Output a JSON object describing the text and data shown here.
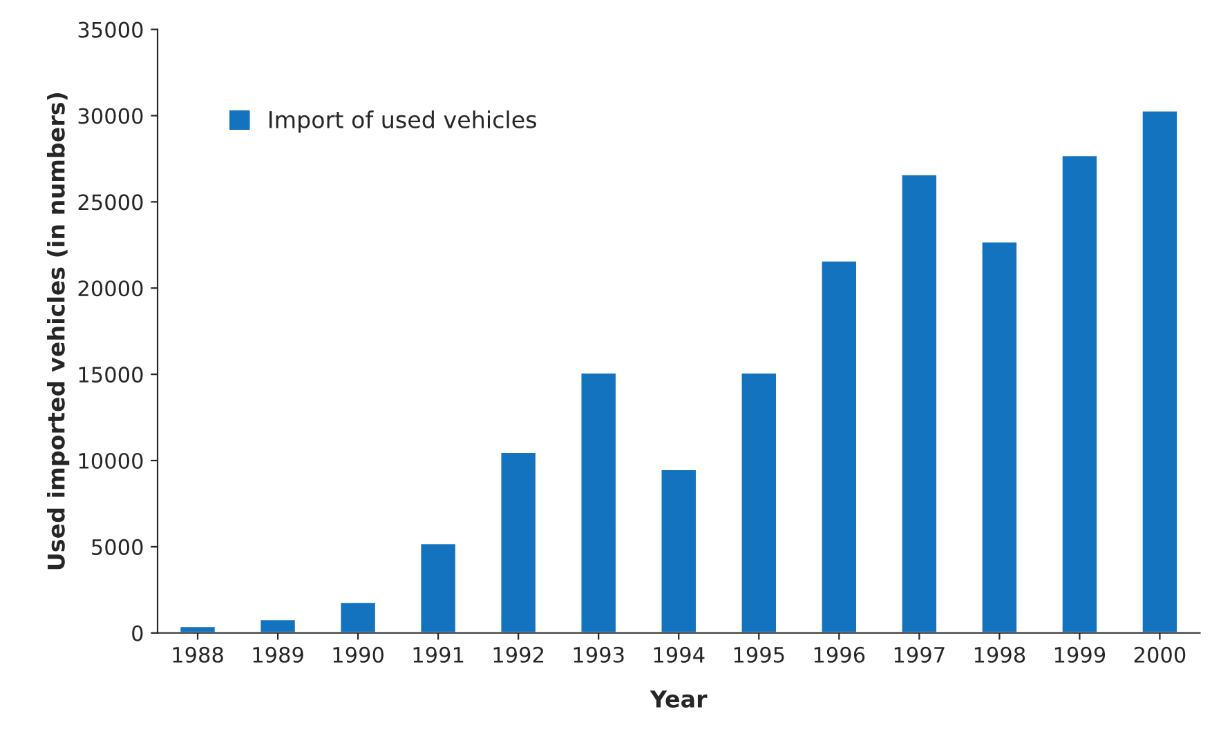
{
  "chart_data": {
    "type": "bar",
    "xlabel": "Year",
    "ylabel": "Used imported vehicles (in numbers)",
    "categories": [
      "1988",
      "1989",
      "1990",
      "1991",
      "1992",
      "1993",
      "1994",
      "1995",
      "1996",
      "1997",
      "1998",
      "1999",
      "2000"
    ],
    "series": [
      {
        "name": "Import of used vehicles",
        "color": "#1473be",
        "values": [
          400,
          800,
          1800,
          5200,
          10500,
          15100,
          9500,
          15100,
          21600,
          26600,
          22700,
          27700,
          30300
        ]
      }
    ],
    "ylim": [
      0,
      35000
    ],
    "yticks": [
      0,
      5000,
      10000,
      15000,
      20000,
      25000,
      30000,
      35000
    ],
    "grid": false,
    "legend": "top left"
  }
}
